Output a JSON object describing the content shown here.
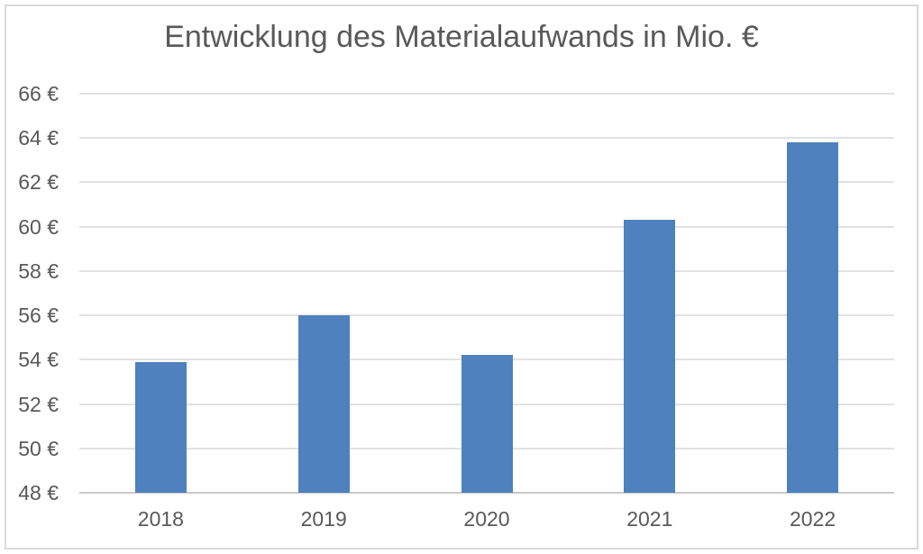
{
  "chart_data": {
    "type": "bar",
    "title": "Entwicklung des Materialaufwands in Mio. €",
    "categories": [
      "2018",
      "2019",
      "2020",
      "2021",
      "2022"
    ],
    "values": [
      53.9,
      56.0,
      54.2,
      60.3,
      63.8
    ],
    "xlabel": "",
    "ylabel": "",
    "ylim": [
      48,
      66
    ],
    "ytick_step": 2,
    "ytick_labels": [
      "48 €",
      "50 €",
      "52 €",
      "54 €",
      "56 €",
      "58 €",
      "60 €",
      "62 €",
      "64 €",
      "66 €"
    ],
    "grid": true,
    "legend_position": "none",
    "colors": {
      "bar": "#4E81BD",
      "text": "#595959",
      "gridline": "#E2E2E2",
      "axis_line": "#C9C9C9",
      "chart_border": "#D9D9D9",
      "background": "#FFFFFF"
    }
  }
}
